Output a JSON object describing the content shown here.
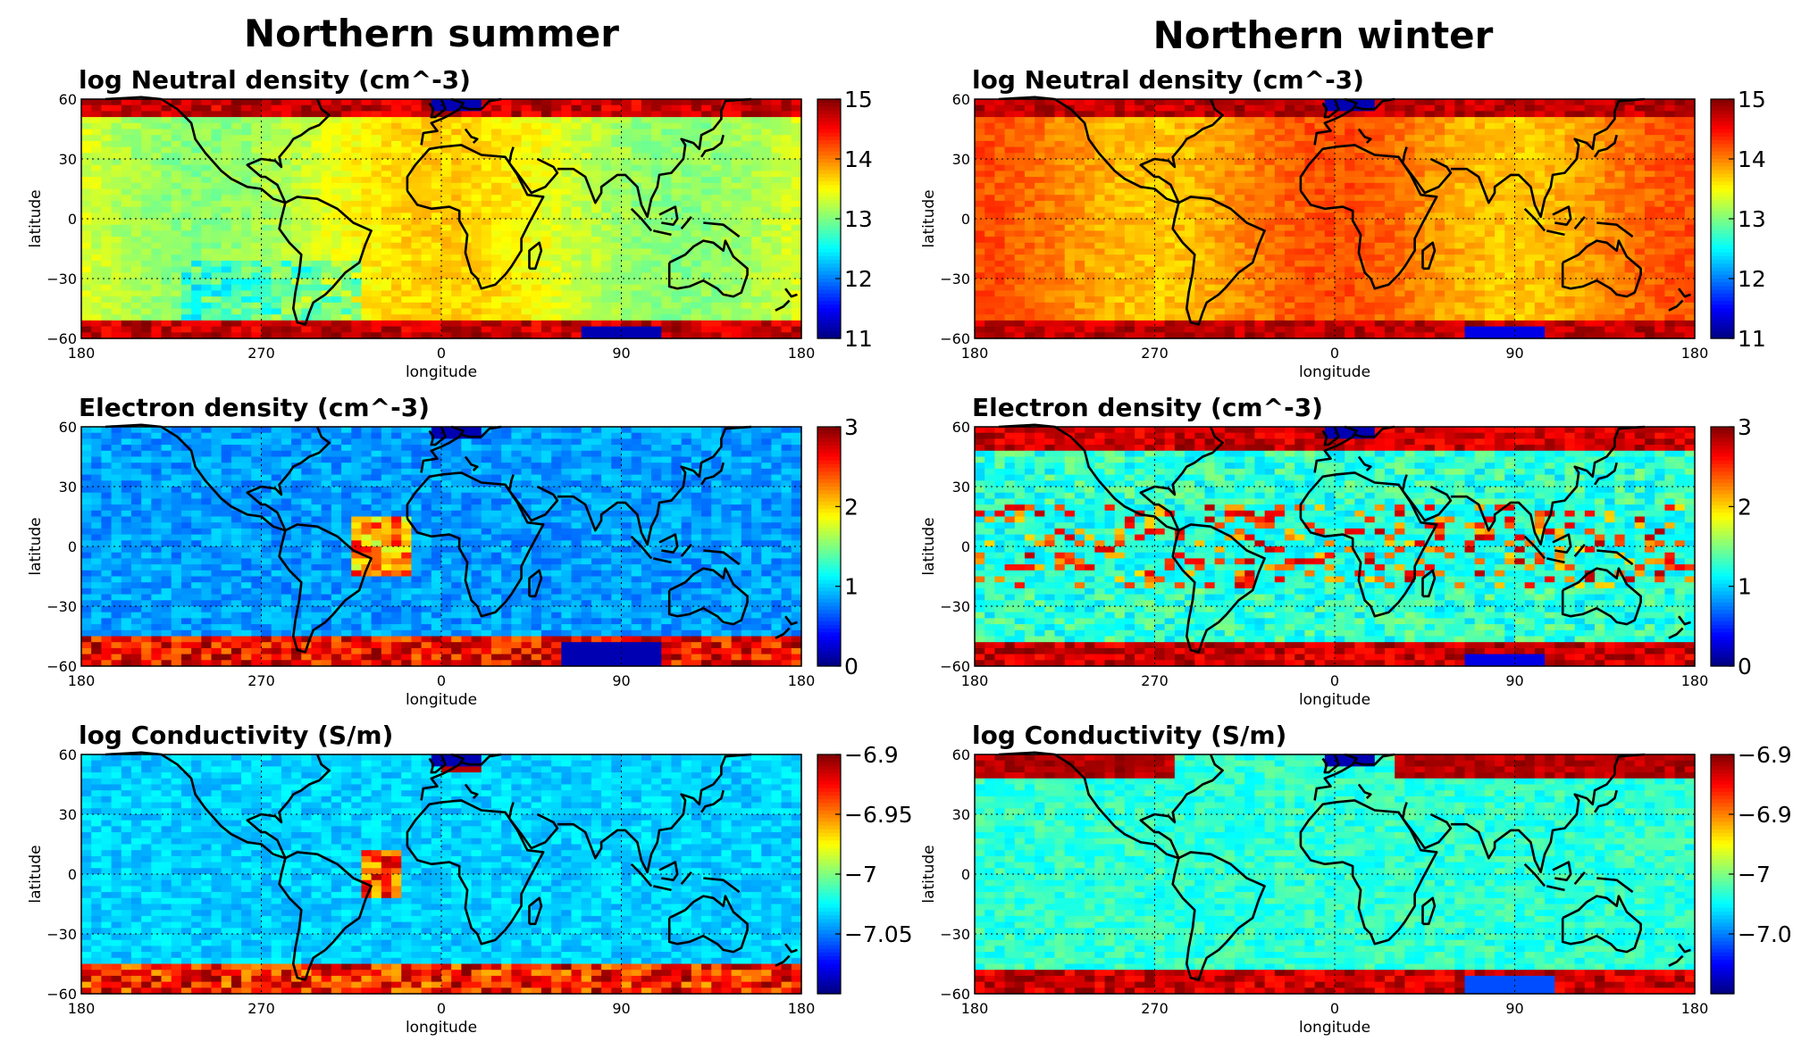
{
  "columns": [
    {
      "title": "Northern summer",
      "season": "summer"
    },
    {
      "title": "Northern winter",
      "season": "winter"
    }
  ],
  "chart_data": [
    {
      "type": "heatmap",
      "column": 0,
      "row": 0,
      "title": "log Neutral density (cm^-3)",
      "xlabel": "longitude",
      "ylabel": "latitude",
      "xticks": [
        "180",
        "270",
        "0",
        "90",
        "180"
      ],
      "yticks": [
        "60",
        "30",
        "0",
        "−30",
        "−60"
      ],
      "clim": [
        11,
        15
      ],
      "cticks": [
        "15",
        "14",
        "13",
        "12",
        "11"
      ],
      "variable": "neutral",
      "colormap": "jet",
      "grid": "dotted",
      "overlay": "coastlines"
    },
    {
      "type": "heatmap",
      "column": 0,
      "row": 1,
      "title": "Electron density (cm^-3)",
      "xlabel": "longitude",
      "ylabel": "latitude",
      "xticks": [
        "180",
        "270",
        "0",
        "90",
        "180"
      ],
      "yticks": [
        "60",
        "30",
        "0",
        "−30",
        "−60"
      ],
      "clim": [
        0,
        3
      ],
      "cticks": [
        "3",
        "2",
        "1",
        "0"
      ],
      "variable": "electron",
      "colormap": "jet",
      "grid": "dotted",
      "overlay": "coastlines"
    },
    {
      "type": "heatmap",
      "column": 0,
      "row": 2,
      "title": "log Conductivity (S/m)",
      "xlabel": "longitude",
      "ylabel": "latitude",
      "xticks": [
        "180",
        "270",
        "0",
        "90",
        "180"
      ],
      "yticks": [
        "60",
        "30",
        "0",
        "−30",
        "−60"
      ],
      "clim": [
        -7.1,
        -6.9
      ],
      "cticks": [
        "−6.9",
        "−6.95",
        "−7",
        "−7.05"
      ],
      "variable": "conductivity",
      "colormap": "jet",
      "grid": "dotted",
      "overlay": "coastlines"
    },
    {
      "type": "heatmap",
      "column": 1,
      "row": 0,
      "title": "log Neutral density (cm^-3)",
      "xlabel": "longitude",
      "ylabel": "latitude",
      "xticks": [
        "180",
        "270",
        "0",
        "90",
        "180"
      ],
      "yticks": [
        "60",
        "30",
        "0",
        "−30",
        "−60"
      ],
      "clim": [
        11,
        15
      ],
      "cticks": [
        "15",
        "14",
        "13",
        "12",
        "11"
      ],
      "variable": "neutral",
      "colormap": "jet",
      "grid": "dotted",
      "overlay": "coastlines"
    },
    {
      "type": "heatmap",
      "column": 1,
      "row": 1,
      "title": "Electron density (cm^-3)",
      "xlabel": "longitude",
      "ylabel": "latitude",
      "xticks": [
        "180",
        "270",
        "0",
        "90",
        "180"
      ],
      "yticks": [
        "60",
        "30",
        "0",
        "−30",
        "−60"
      ],
      "clim": [
        0,
        3
      ],
      "cticks": [
        "3",
        "2",
        "1",
        "0"
      ],
      "variable": "electron",
      "colormap": "jet",
      "grid": "dotted",
      "overlay": "coastlines"
    },
    {
      "type": "heatmap",
      "column": 1,
      "row": 2,
      "title": "log Conductivity (S/m)",
      "xlabel": "longitude",
      "ylabel": "latitude",
      "xticks": [
        "180",
        "270",
        "0",
        "90",
        "180"
      ],
      "yticks": [
        "60",
        "30",
        "0",
        "−30",
        "−60"
      ],
      "clim": [
        -7.1,
        -6.9
      ],
      "cticks": [
        "−6.9",
        "−6.95",
        "−7",
        "−7.05"
      ],
      "variable": "conductivity",
      "colormap": "jet",
      "grid": "dotted",
      "overlay": "coastlines"
    }
  ]
}
